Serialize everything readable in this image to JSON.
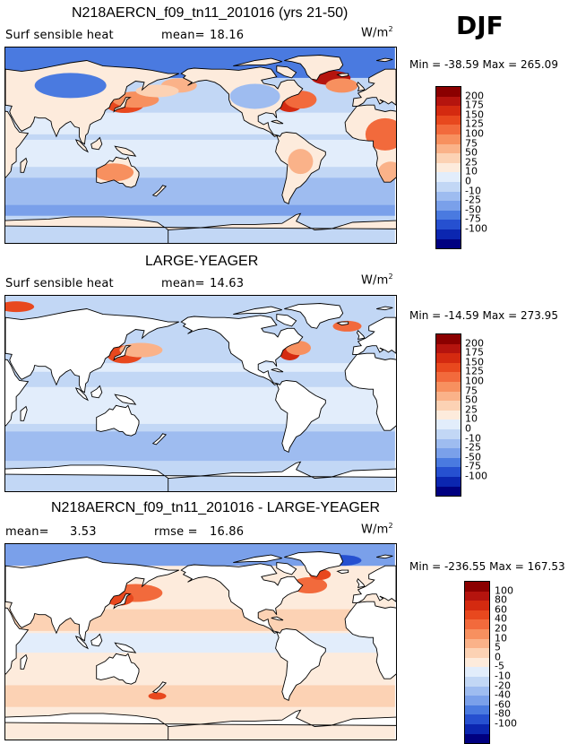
{
  "season": "DJF",
  "panels": [
    {
      "title": "N218AERCN_f09_tn11_201016 (yrs 21-50)",
      "variable": "Surf sensible heat",
      "stat1_label": "mean=",
      "stat1_value": "18.16",
      "stat2_label": "",
      "stat2_value": "",
      "units_base": "W/m",
      "units_exp": "2",
      "min_max": "Min = -38.59 Max = 265.09",
      "levels": [
        "200",
        "175",
        "150",
        "125",
        "100",
        "75",
        "50",
        "25",
        "10",
        "0",
        "-10",
        "-25",
        "-50",
        "-75",
        "-100"
      ],
      "colors": [
        "#8b0000",
        "#b5140e",
        "#d42a10",
        "#e8481e",
        "#f26a3c",
        "#f7905f",
        "#fab289",
        "#fcd2b4",
        "#fdebdc",
        "#e2edfb",
        "#c2d7f5",
        "#9ebcf0",
        "#7aa0ea",
        "#4a7ae0",
        "#2650d0",
        "#0b26b0",
        "#000080"
      ],
      "ocean_field": "model"
    },
    {
      "title": "LARGE-YEAGER",
      "variable": "Surf sensible heat",
      "stat1_label": "mean=",
      "stat1_value": "14.63",
      "stat2_label": "",
      "stat2_value": "",
      "units_base": "W/m",
      "units_exp": "2",
      "min_max": "Min = -14.59 Max = 273.95",
      "levels": [
        "200",
        "175",
        "150",
        "125",
        "100",
        "75",
        "50",
        "25",
        "10",
        "0",
        "-10",
        "-25",
        "-50",
        "-75",
        "-100"
      ],
      "colors": [
        "#8b0000",
        "#b5140e",
        "#d42a10",
        "#e8481e",
        "#f26a3c",
        "#f7905f",
        "#fab289",
        "#fcd2b4",
        "#fdebdc",
        "#e2edfb",
        "#c2d7f5",
        "#9ebcf0",
        "#7aa0ea",
        "#4a7ae0",
        "#2650d0",
        "#0b26b0",
        "#000080"
      ],
      "ocean_field": "obs"
    },
    {
      "title": "N218AERCN_f09_tn11_201016 - LARGE-YEAGER",
      "variable": "",
      "stat1_label": "mean=",
      "stat1_value": "3.53",
      "stat2_label": "rmse =",
      "stat2_value": "16.86",
      "units_base": "W/m",
      "units_exp": "2",
      "min_max": "Min = -236.55 Max = 167.53",
      "levels": [
        "100",
        "80",
        "60",
        "40",
        "20",
        "10",
        "5",
        "0",
        "-5",
        "-10",
        "-20",
        "-40",
        "-60",
        "-80",
        "-100"
      ],
      "colors": [
        "#8b0000",
        "#b5140e",
        "#d42a10",
        "#e8481e",
        "#f26a3c",
        "#f7905f",
        "#fab289",
        "#fcd2b4",
        "#fdebdc",
        "#e2edfb",
        "#c2d7f5",
        "#9ebcf0",
        "#7aa0ea",
        "#4a7ae0",
        "#2650d0",
        "#0b26b0",
        "#000080"
      ],
      "ocean_field": "diff"
    }
  ]
}
